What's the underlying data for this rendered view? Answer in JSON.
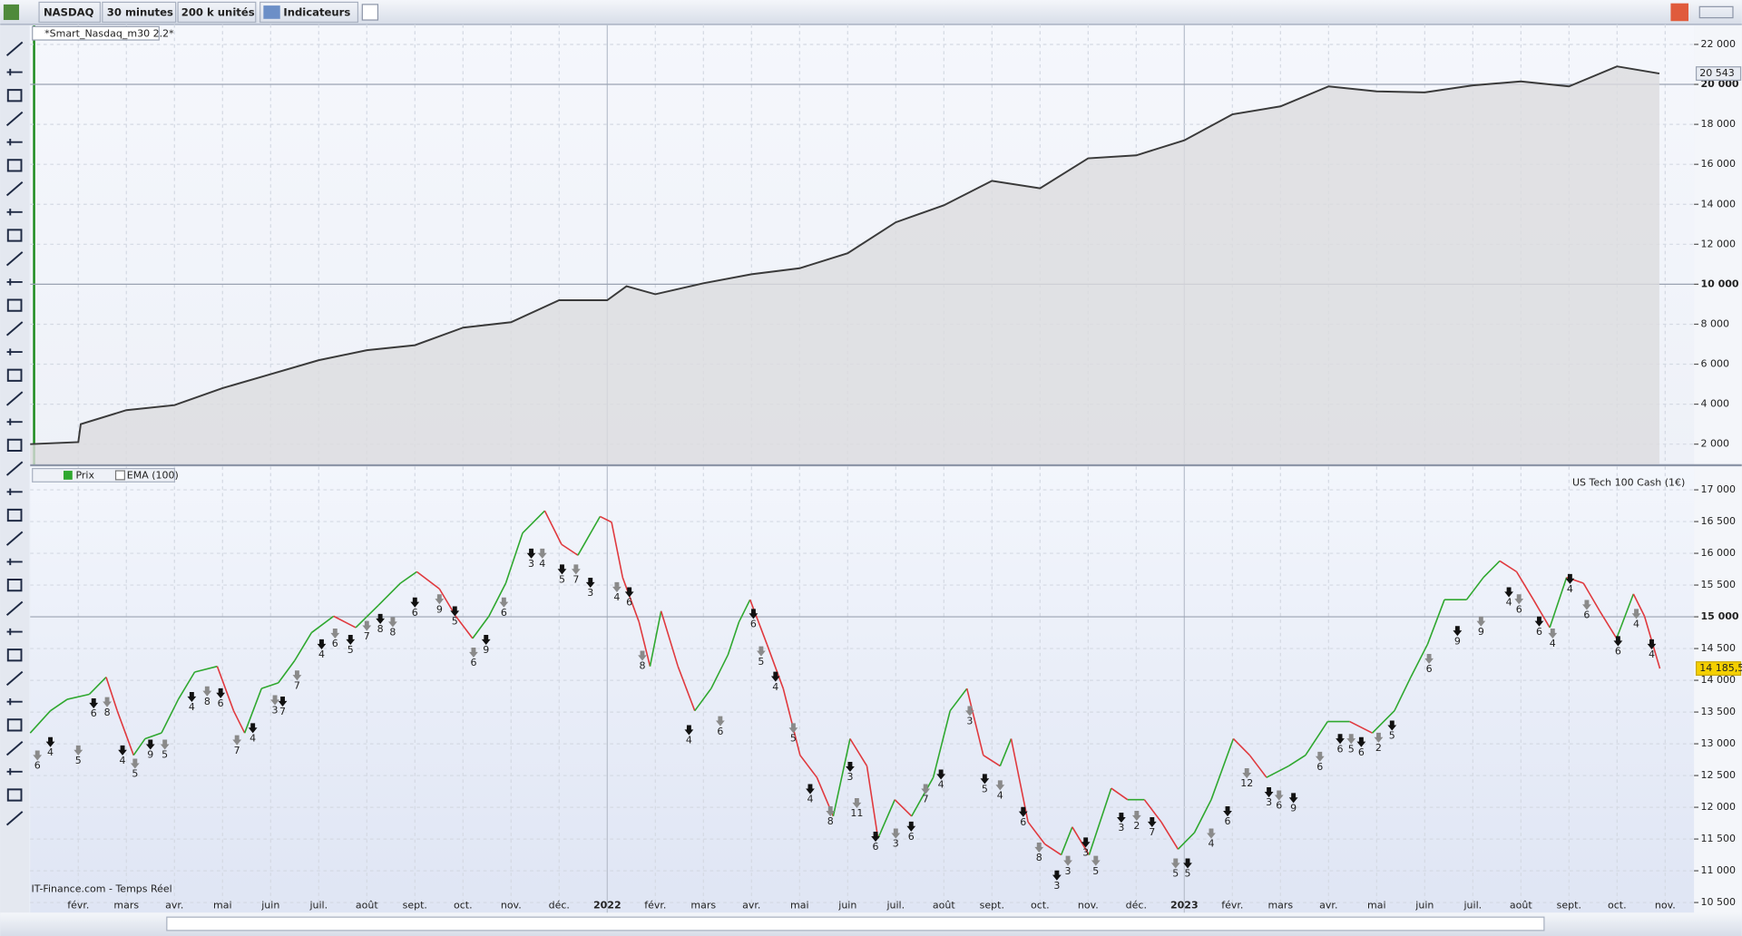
{
  "toolbar": {
    "instrument": "NASDAQ",
    "timeframe": "30 minutes",
    "units": "200 k unités",
    "indicators": "Indicateurs"
  },
  "footer": {
    "source": "IT-Finance.com - Temps Réel"
  },
  "chart_data": [
    {
      "type": "area",
      "title": "*Smart_Nasdaq_m30 2.2*",
      "color": "#3a3a3a",
      "fill": "#dcdcdf",
      "grid": true,
      "x": [
        0,
        1,
        1.05,
        2,
        3,
        4,
        5,
        6,
        7,
        8,
        9,
        10,
        11,
        12,
        12.4,
        13,
        14,
        15,
        16,
        17,
        18,
        19,
        20,
        21,
        22,
        23,
        24,
        25,
        26,
        27,
        28,
        29,
        30,
        31,
        32,
        33,
        33.88
      ],
      "values": [
        2000,
        2100,
        3000,
        3700,
        3950,
        4800,
        5500,
        6200,
        6700,
        6950,
        7830,
        8100,
        9200,
        9200,
        9900,
        9500,
        10050,
        10500,
        10800,
        11550,
        13100,
        13950,
        15170,
        14800,
        16300,
        16450,
        17200,
        18500,
        18900,
        19900,
        19650,
        19600,
        19950,
        20150,
        19900,
        20900,
        20543
      ],
      "last_value_label": "20 543",
      "xlim": [
        0,
        34.6
      ],
      "ylim": [
        1000,
        23000
      ],
      "major_ystep": 10000,
      "yticks": [
        {
          "value": 2000,
          "label": "2 000"
        },
        {
          "value": 4000,
          "label": "4 000"
        },
        {
          "value": 6000,
          "label": "6 000"
        },
        {
          "value": 8000,
          "label": "8 000"
        },
        {
          "value": 10000,
          "label": "10 000"
        },
        {
          "value": 12000,
          "label": "12 000"
        },
        {
          "value": 14000,
          "label": "14 000"
        },
        {
          "value": 16000,
          "label": "16 000"
        },
        {
          "value": 18000,
          "label": "18 000"
        },
        {
          "value": 20000,
          "label": "20 000"
        },
        {
          "value": 22000,
          "label": "22 000"
        }
      ]
    },
    {
      "type": "line",
      "watermark": "US Tech 100 Cash (1€)",
      "legend": [
        "Prix",
        "EMA (100)"
      ],
      "up_color": "#2fa82f",
      "down_color": "#e0393e",
      "grid": true,
      "x": [
        0,
        0.42,
        0.77,
        1.23,
        1.58,
        1.81,
        2.15,
        2.39,
        2.73,
        3.08,
        3.42,
        3.89,
        4.23,
        4.46,
        4.81,
        5.16,
        5.5,
        5.85,
        6.31,
        6.77,
        7.24,
        7.7,
        8.04,
        8.51,
        8.85,
        9.2,
        9.54,
        9.89,
        10.24,
        10.7,
        11.05,
        11.39,
        11.85,
        12.09,
        12.32,
        12.66,
        12.89,
        13.12,
        13.47,
        13.82,
        14.16,
        14.51,
        14.74,
        14.97,
        15.32,
        15.66,
        16.01,
        16.36,
        16.7,
        17.05,
        17.4,
        17.63,
        17.98,
        18.33,
        18.78,
        19.13,
        19.48,
        19.82,
        20.17,
        20.4,
        20.75,
        21.1,
        21.44,
        21.67,
        22.02,
        22.48,
        22.82,
        23.17,
        23.52,
        23.87,
        24.21,
        24.56,
        25.02,
        25.36,
        25.71,
        26.17,
        26.52,
        26.98,
        27.44,
        27.91,
        28.37,
        28.71,
        29.06,
        29.41,
        29.87,
        30.22,
        30.56,
        30.91,
        31.26,
        31.6,
        31.95,
        32.3,
        32.64,
        32.99,
        33.34,
        33.57,
        33.89
      ],
      "values": [
        13170,
        13520,
        13700,
        13780,
        14050,
        13520,
        12820,
        13080,
        13170,
        13700,
        14130,
        14220,
        13520,
        13170,
        13870,
        13960,
        14310,
        14750,
        15010,
        14830,
        15180,
        15530,
        15710,
        15440,
        15010,
        14660,
        15010,
        15530,
        16320,
        16670,
        16140,
        15970,
        16580,
        16490,
        15620,
        14920,
        14220,
        15090,
        14220,
        13520,
        13870,
        14400,
        14920,
        15270,
        14570,
        13870,
        12820,
        12470,
        11860,
        13080,
        12650,
        11510,
        12120,
        11860,
        12470,
        13520,
        13870,
        12820,
        12650,
        13080,
        11770,
        11420,
        11250,
        11690,
        11250,
        12300,
        12120,
        12120,
        11770,
        11340,
        11600,
        12120,
        13080,
        12820,
        12470,
        12650,
        12820,
        13350,
        13350,
        13170,
        13520,
        14050,
        14570,
        15270,
        15270,
        15620,
        15880,
        15710,
        15270,
        14830,
        15620,
        15530,
        15090,
        14660,
        15360,
        15010,
        14185.5
      ],
      "last_value_label": "14 185,5",
      "xlim": [
        0,
        34.6
      ],
      "ylim": [
        10340,
        17370
      ],
      "major_ystep": 5000,
      "major_xstep": 12,
      "yticks": [
        {
          "value": 10500,
          "label": "10 500"
        },
        {
          "value": 11000,
          "label": "11 000"
        },
        {
          "value": 11500,
          "label": "11 500"
        },
        {
          "value": 12000,
          "label": "12 000"
        },
        {
          "value": 12500,
          "label": "12 500"
        },
        {
          "value": 13000,
          "label": "13 000"
        },
        {
          "value": 13500,
          "label": "13 500"
        },
        {
          "value": 14000,
          "label": "14 000"
        },
        {
          "value": 14500,
          "label": "14 500"
        },
        {
          "value": 15000,
          "label": "15 000"
        },
        {
          "value": 15500,
          "label": "15 500"
        },
        {
          "value": 16000,
          "label": "16 000"
        },
        {
          "value": 16500,
          "label": "16 500"
        },
        {
          "value": 17000,
          "label": "17 000"
        }
      ],
      "xticks": [
        {
          "value": 1,
          "label": "févr."
        },
        {
          "value": 2,
          "label": "mars"
        },
        {
          "value": 3,
          "label": "avr."
        },
        {
          "value": 4,
          "label": "mai"
        },
        {
          "value": 5,
          "label": "juin"
        },
        {
          "value": 6,
          "label": "juil."
        },
        {
          "value": 7,
          "label": "août"
        },
        {
          "value": 8,
          "label": "sept."
        },
        {
          "value": 9,
          "label": "oct."
        },
        {
          "value": 10,
          "label": "nov."
        },
        {
          "value": 11,
          "label": "déc."
        },
        {
          "value": 12,
          "label": "2022"
        },
        {
          "value": 13,
          "label": "févr."
        },
        {
          "value": 14,
          "label": "mars"
        },
        {
          "value": 15,
          "label": "avr."
        },
        {
          "value": 16,
          "label": "mai"
        },
        {
          "value": 17,
          "label": "juin"
        },
        {
          "value": 18,
          "label": "juil."
        },
        {
          "value": 19,
          "label": "août"
        },
        {
          "value": 20,
          "label": "sept."
        },
        {
          "value": 21,
          "label": "oct."
        },
        {
          "value": 22,
          "label": "nov."
        },
        {
          "value": 23,
          "label": "déc."
        },
        {
          "value": 24,
          "label": "2023"
        },
        {
          "value": 25,
          "label": "févr."
        },
        {
          "value": 26,
          "label": "mars"
        },
        {
          "value": 27,
          "label": "avr."
        },
        {
          "value": 28,
          "label": "mai"
        },
        {
          "value": 29,
          "label": "juin"
        },
        {
          "value": 30,
          "label": "juil."
        },
        {
          "value": 31,
          "label": "août"
        },
        {
          "value": 32,
          "label": "sept."
        },
        {
          "value": 33,
          "label": "oct."
        },
        {
          "value": 34,
          "label": "nov."
        }
      ],
      "trades": {
        "x": [
          0.15,
          0.42,
          1.0,
          1.32,
          1.6,
          1.92,
          2.18,
          2.5,
          2.8,
          3.36,
          3.68,
          3.96,
          4.3,
          4.63,
          5.09,
          5.25,
          5.55,
          6.06,
          6.34,
          6.66,
          7.0,
          7.28,
          7.54,
          8.0,
          8.51,
          8.83,
          9.22,
          9.48,
          9.85,
          10.42,
          10.65,
          11.06,
          11.35,
          11.65,
          12.2,
          12.46,
          12.73,
          13.7,
          14.35,
          15.04,
          15.2,
          15.5,
          15.87,
          16.22,
          16.64,
          17.05,
          17.19,
          17.58,
          18.0,
          18.32,
          18.62,
          18.94,
          19.54,
          19.85,
          20.17,
          20.65,
          20.98,
          21.35,
          21.58,
          21.95,
          22.16,
          22.69,
          23.01,
          23.33,
          23.82,
          24.07,
          24.56,
          24.9,
          25.3,
          25.76,
          25.97,
          26.27,
          26.82,
          27.24,
          27.47,
          27.68,
          28.04,
          28.32,
          29.09,
          29.68,
          30.17,
          30.75,
          30.96,
          31.38,
          31.66,
          32.02,
          32.37,
          33.02,
          33.4,
          33.72
        ],
        "values": [
          12650,
          12860,
          12730,
          13470,
          13490,
          12730,
          12520,
          12820,
          12820,
          13570,
          13660,
          13630,
          12890,
          13080,
          13520,
          13500,
          13910,
          14400,
          14570,
          14470,
          14690,
          14800,
          14750,
          15060,
          15110,
          14920,
          14270,
          14470,
          15060,
          15830,
          15830,
          15580,
          15580,
          15370,
          15300,
          15220,
          14220,
          13050,
          13190,
          14880,
          14290,
          13890,
          13080,
          12120,
          11770,
          12470,
          11900,
          11370,
          11420,
          11530,
          12120,
          12350,
          13350,
          12280,
          12180,
          11760,
          11200,
          10760,
          10990,
          11280,
          10990,
          11670,
          11700,
          11600,
          10950,
          10950,
          11420,
          11770,
          12370,
          12070,
          12020,
          11980,
          12630,
          12910,
          12910,
          12860,
          12930,
          13120,
          14170,
          14610,
          14760,
          15220,
          15110,
          14760,
          14570,
          15430,
          15020,
          14450,
          14880,
          14400
        ],
        "labels": [
          "6",
          "4",
          "5",
          "6",
          "8",
          "4",
          "5",
          "9",
          "5",
          "4",
          "8",
          "6",
          "7",
          "4",
          "3",
          "7",
          "7",
          "4",
          "6",
          "5",
          "7",
          "8",
          "8",
          "6",
          "9",
          "5",
          "6",
          "9",
          "6",
          "3",
          "4",
          "5",
          "7",
          "3",
          "4",
          "6",
          "8",
          "4",
          "6",
          "6",
          "5",
          "4",
          "5",
          "4",
          "8",
          "3",
          "11",
          "6",
          "3",
          "6",
          "7",
          "4",
          "3",
          "5",
          "4",
          "6",
          "8",
          "3",
          "3",
          "3",
          "5",
          "3",
          "2",
          "7",
          "5",
          "5",
          "4",
          "6",
          "12",
          "3",
          "6",
          "9",
          "6",
          "6",
          "5",
          "6",
          "2",
          "5",
          "6",
          "9",
          "9",
          "4",
          "6",
          "6",
          "4",
          "4",
          "6",
          "6",
          "4",
          "4"
        ]
      }
    }
  ]
}
